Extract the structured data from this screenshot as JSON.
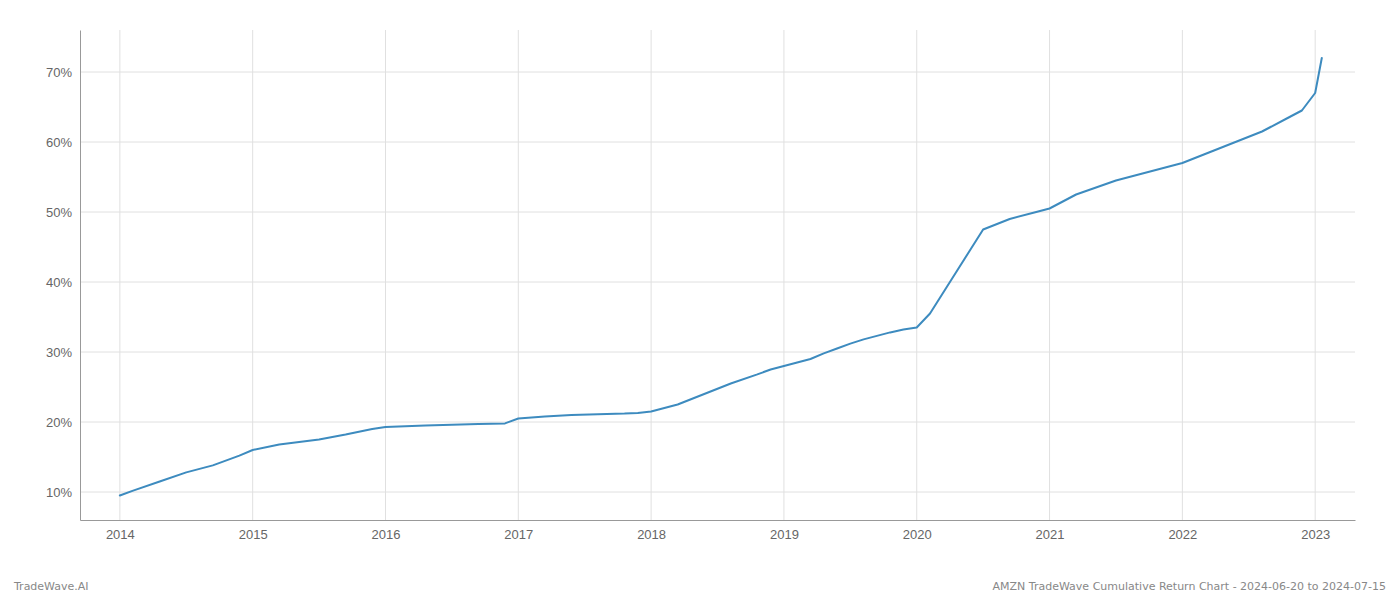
{
  "chart_data": {
    "type": "line",
    "x": [
      2014.0,
      2014.1,
      2014.3,
      2014.5,
      2014.7,
      2014.9,
      2015.0,
      2015.2,
      2015.5,
      2015.7,
      2015.9,
      2016.0,
      2016.3,
      2016.5,
      2016.7,
      2016.9,
      2017.0,
      2017.2,
      2017.4,
      2017.6,
      2017.8,
      2017.9,
      2018.0,
      2018.2,
      2018.4,
      2018.6,
      2018.8,
      2018.9,
      2019.0,
      2019.1,
      2019.2,
      2019.3,
      2019.4,
      2019.5,
      2019.6,
      2019.7,
      2019.8,
      2019.9,
      2020.0,
      2020.1,
      2020.2,
      2020.3,
      2020.4,
      2020.5,
      2020.7,
      2020.9,
      2021.0,
      2021.2,
      2021.5,
      2021.7,
      2021.9,
      2022.0,
      2022.2,
      2022.4,
      2022.6,
      2022.8,
      2022.9,
      2023.0,
      2023.05
    ],
    "values": [
      9.5,
      10.2,
      11.5,
      12.8,
      13.8,
      15.2,
      16.0,
      16.8,
      17.5,
      18.2,
      19.0,
      19.3,
      19.5,
      19.6,
      19.7,
      19.8,
      20.5,
      20.8,
      21.0,
      21.1,
      21.2,
      21.3,
      21.5,
      22.5,
      24.0,
      25.5,
      26.8,
      27.5,
      28.0,
      28.5,
      29.0,
      29.8,
      30.5,
      31.2,
      31.8,
      32.3,
      32.8,
      33.2,
      33.5,
      35.5,
      38.5,
      41.5,
      44.5,
      47.5,
      49.0,
      50.0,
      50.5,
      52.5,
      54.5,
      55.5,
      56.5,
      57.0,
      58.5,
      60.0,
      61.5,
      63.5,
      64.5,
      67.0,
      72.0
    ],
    "color": "#3d8bbf",
    "xlim": [
      2013.7,
      2023.3
    ],
    "xticks": [
      2014,
      2015,
      2016,
      2017,
      2018,
      2019,
      2020,
      2021,
      2022,
      2023
    ],
    "ylim": [
      6,
      76
    ],
    "yticks": [
      {
        "value": 10,
        "label": "10%"
      },
      {
        "value": 20,
        "label": "20%"
      },
      {
        "value": 30,
        "label": "30%"
      },
      {
        "value": 40,
        "label": "40%"
      },
      {
        "value": 50,
        "label": "50%"
      },
      {
        "value": 60,
        "label": "60%"
      },
      {
        "value": 70,
        "label": "70%"
      }
    ],
    "grid": true,
    "annotations": [
      "TradeWave.AI",
      "AMZN TradeWave Cumulative Return Chart - 2024-06-20 to 2024-07-15"
    ]
  }
}
